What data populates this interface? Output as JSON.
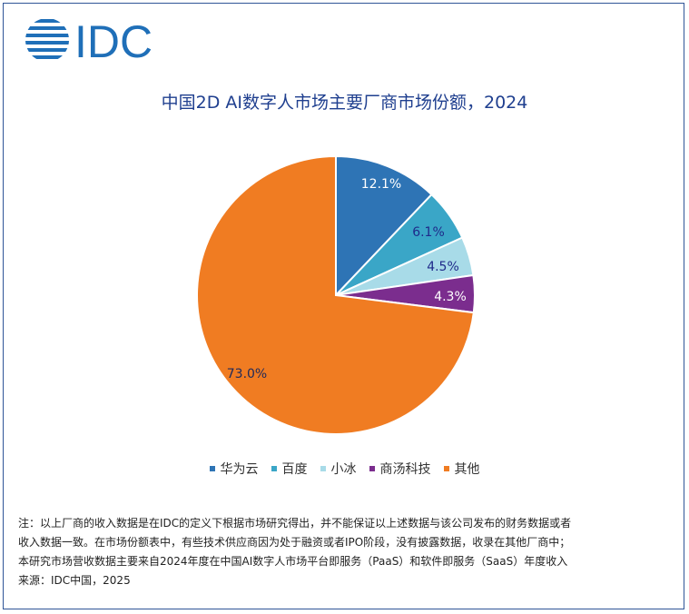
{
  "logo": {
    "text": "IDC"
  },
  "chart_data": {
    "type": "pie",
    "title": "中国2D AI数字人市场主要厂商市场份额，2024",
    "slices": [
      {
        "label": "华为云",
        "value": 12.1,
        "display": "12.1%",
        "color": "#2e74b5"
      },
      {
        "label": "百度",
        "value": 6.1,
        "display": "6.1%",
        "color": "#3aa6c7"
      },
      {
        "label": "小冰",
        "value": 4.5,
        "display": "4.5%",
        "color": "#a8dbe8"
      },
      {
        "label": "商汤科技",
        "value": 4.3,
        "display": "4.3%",
        "color": "#7b2d8e"
      },
      {
        "label": "其他",
        "value": 73.0,
        "display": "73.0%",
        "color": "#f07c22"
      }
    ],
    "legend_position": "bottom"
  },
  "notes": [
    "注：以上厂商的收入数据是在IDC的定义下根据市场研究得出，并不能保证以上述数据与该公司发布的财务数据或者",
    "收入数据一致。在市场份额表中，有些技术供应商因为处于融资或者IPO阶段，没有披露数据，收录在其他厂商中；",
    "本研究市场营收数据主要来自2024年度在中国AI数字人市场平台即服务（PaaS）和软件即服务（SaaS）年度收入",
    "来源：IDC中国，2025"
  ]
}
